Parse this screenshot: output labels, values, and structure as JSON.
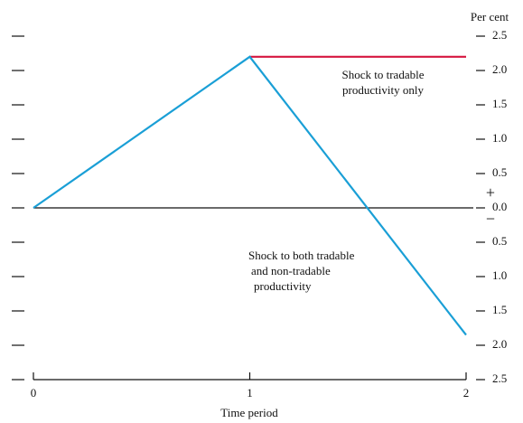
{
  "chart_data": {
    "type": "line",
    "x_label": "Time period",
    "y_unit": "Per cent",
    "x": [
      0,
      1,
      2
    ],
    "xlim": [
      0,
      2
    ],
    "xticks": [
      0,
      1,
      2
    ],
    "ylim": [
      -2.5,
      2.5
    ],
    "yticks": [
      2.5,
      {
        "value": 2,
        "label": "2.0"
      },
      1.5,
      {
        "value": 1,
        "label": "1.0"
      },
      0.5,
      {
        "value": 0,
        "label": "0.0"
      },
      {
        "value": -0.5,
        "label": "0.5"
      },
      {
        "value": -1,
        "label": "1.0"
      },
      {
        "value": -1.5,
        "label": "1.5"
      },
      {
        "value": -2,
        "label": "2.0"
      },
      {
        "value": -2.5,
        "label": "2.5"
      }
    ],
    "sign_labels": [
      "+",
      "−"
    ],
    "series": [
      {
        "name": "Shock to tradable productivity only",
        "color": "#d6163f",
        "values": [
          null,
          2.2,
          2.2
        ]
      },
      {
        "name": "Shock to both tradable and non-tradable productivity",
        "color": "#1a9fd6",
        "values": [
          0,
          2.2,
          -1.85
        ]
      }
    ],
    "annotations": [
      [
        "Shock to tradable",
        "productivity only"
      ],
      [
        "Shock to both tradable",
        "and non-tradable",
        "productivity"
      ]
    ]
  }
}
